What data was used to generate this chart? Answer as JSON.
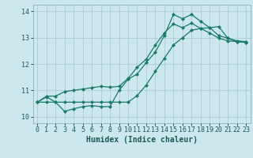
{
  "xlabel": "Humidex (Indice chaleur)",
  "bg_color": "#cce8ec",
  "grid_color": "#aacdd4",
  "line_color": "#1a7a6e",
  "xlim": [
    -0.5,
    23.5
  ],
  "ylim": [
    9.75,
    14.25
  ],
  "xticks": [
    0,
    1,
    2,
    3,
    4,
    5,
    6,
    7,
    8,
    9,
    10,
    11,
    12,
    13,
    14,
    15,
    16,
    17,
    18,
    19,
    20,
    21,
    22,
    23
  ],
  "yticks": [
    10,
    11,
    12,
    13,
    14
  ],
  "series1_x": [
    0,
    1,
    2,
    3,
    4,
    5,
    6,
    7,
    8,
    9,
    10,
    11,
    12,
    13,
    14,
    15,
    16,
    17,
    18,
    19,
    20,
    21,
    22,
    23
  ],
  "series1_y": [
    10.55,
    10.75,
    10.55,
    10.2,
    10.3,
    10.38,
    10.42,
    10.38,
    10.38,
    11.0,
    11.42,
    11.62,
    12.05,
    12.45,
    13.08,
    13.88,
    13.72,
    13.88,
    13.62,
    13.38,
    13.08,
    12.98,
    12.88,
    12.85
  ],
  "series2_x": [
    0,
    1,
    2,
    3,
    4,
    5,
    6,
    7,
    8,
    9,
    10,
    11,
    12,
    13,
    14,
    15,
    16,
    17,
    18,
    19,
    20,
    21,
    22,
    23
  ],
  "series2_y": [
    10.55,
    10.78,
    10.78,
    10.95,
    11.0,
    11.05,
    11.1,
    11.15,
    11.12,
    11.15,
    11.45,
    11.88,
    12.18,
    12.72,
    13.18,
    13.52,
    13.38,
    13.55,
    13.35,
    13.18,
    12.98,
    12.88,
    12.85,
    12.82
  ],
  "series3_x": [
    0,
    1,
    2,
    3,
    4,
    5,
    6,
    7,
    8,
    9,
    10,
    11,
    12,
    13,
    14,
    15,
    16,
    17,
    18,
    19,
    20,
    21,
    22,
    23
  ],
  "series3_y": [
    10.55,
    10.55,
    10.55,
    10.55,
    10.55,
    10.55,
    10.55,
    10.55,
    10.55,
    10.55,
    10.55,
    10.8,
    11.2,
    11.72,
    12.22,
    12.72,
    13.0,
    13.28,
    13.35,
    13.38,
    13.42,
    12.98,
    12.85,
    12.82
  ]
}
